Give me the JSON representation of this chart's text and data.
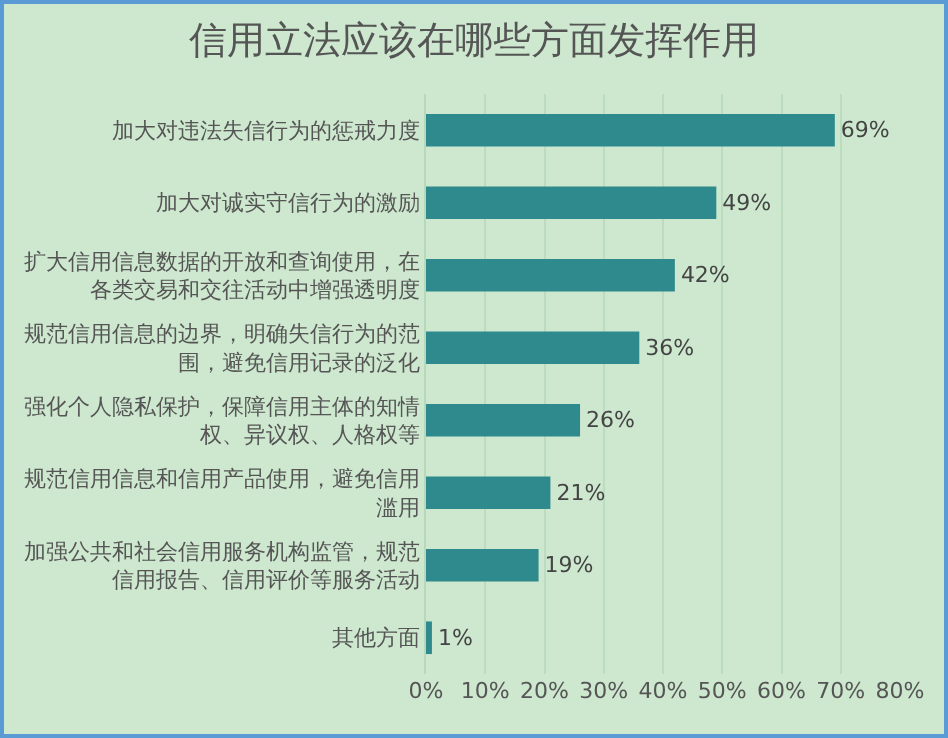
{
  "chart_data": {
    "type": "bar",
    "orientation": "horizontal",
    "title": "信用立法应该在哪些方面发挥作用",
    "categories": [
      "加大对违法失信行为的惩戒力度",
      "加大对诚实守信行为的激励",
      "扩大信用信息数据的开放和查询使用，在各类交易和交往活动中增强透明度",
      "规范信用信息的边界，明确失信行为的范围，避免信用记录的泛化",
      "强化个人隐私保护，保障信用主体的知情权、异议权、人格权等",
      "规范信用信息和信用产品使用，避免信用滥用",
      "加强公共和社会信用服务机构监管，规范信用报告、信用评价等服务活动",
      "其他方面"
    ],
    "values": [
      69,
      49,
      42,
      36,
      26,
      21,
      19,
      1
    ],
    "value_labels": [
      "69%",
      "49%",
      "42%",
      "36%",
      "26%",
      "21%",
      "19%",
      "1%"
    ],
    "color": "#2e8a8c",
    "xlim": [
      0,
      80
    ],
    "xticks": [
      {
        "value": 0,
        "label": "0%"
      },
      {
        "value": 10,
        "label": "10%"
      },
      {
        "value": 20,
        "label": "20%"
      },
      {
        "value": 30,
        "label": "30%"
      },
      {
        "value": 40,
        "label": "40%"
      },
      {
        "value": 50,
        "label": "50%"
      },
      {
        "value": 60,
        "label": "60%"
      },
      {
        "value": 70,
        "label": "70%"
      },
      {
        "value": 80,
        "label": "80%"
      }
    ],
    "grid": "x"
  }
}
